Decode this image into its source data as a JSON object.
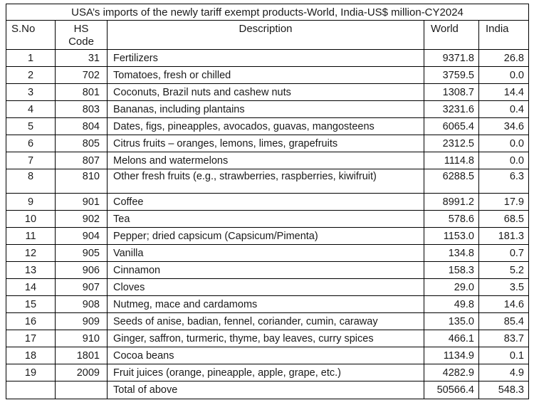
{
  "title": "USA’s imports of the newly tariff exempt products-World, India-US$ million-CY2024",
  "columns": {
    "sno": "S.No",
    "hs_line1": "HS",
    "hs_line2": "Code",
    "description": "Description",
    "world": "World",
    "india": "India"
  },
  "rows": [
    {
      "sno": "1",
      "hs": "31",
      "hs_bold": false,
      "tall": false,
      "description": "Fertilizers",
      "world": "9371.8",
      "india": "26.8"
    },
    {
      "sno": "2",
      "hs": "702",
      "hs_bold": true,
      "tall": false,
      "description": "Tomatoes, fresh or chilled",
      "world": "3759.5",
      "india": "0.0"
    },
    {
      "sno": "3",
      "hs": "801",
      "hs_bold": true,
      "tall": false,
      "description": "Coconuts, Brazil nuts and cashew nuts",
      "world": "1308.7",
      "india": "14.4"
    },
    {
      "sno": "4",
      "hs": "803",
      "hs_bold": true,
      "tall": false,
      "description": "Bananas, including plantains",
      "world": "3231.6",
      "india": "0.4"
    },
    {
      "sno": "5",
      "hs": "804",
      "hs_bold": true,
      "tall": false,
      "description": "Dates, figs, pineapples, avocados, guavas, mangosteens",
      "world": "6065.4",
      "india": "34.6"
    },
    {
      "sno": "6",
      "hs": "805",
      "hs_bold": true,
      "tall": false,
      "description": "Citrus fruits – oranges, lemons, limes, grapefruits",
      "world": "2312.5",
      "india": "0.0"
    },
    {
      "sno": "7",
      "hs": "807",
      "hs_bold": true,
      "tall": false,
      "description": "Melons and watermelons",
      "world": "1114.8",
      "india": "0.0"
    },
    {
      "sno": "8",
      "hs": "810",
      "hs_bold": true,
      "tall": true,
      "description": "Other fresh fruits (e.g., strawberries, raspberries, kiwifruit)",
      "world": "6288.5",
      "india": "6.3"
    },
    {
      "sno": "9",
      "hs": "901",
      "hs_bold": true,
      "tall": false,
      "description": "Coffee",
      "world": "8991.2",
      "india": "17.9"
    },
    {
      "sno": "10",
      "hs": "902",
      "hs_bold": true,
      "tall": false,
      "description": "Tea",
      "world": "578.6",
      "india": "68.5"
    },
    {
      "sno": "11",
      "hs": "904",
      "hs_bold": true,
      "tall": false,
      "description": "Pepper; dried capsicum (Capsicum/Pimenta)",
      "world": "1153.0",
      "india": "181.3"
    },
    {
      "sno": "12",
      "hs": "905",
      "hs_bold": true,
      "tall": false,
      "description": "Vanilla",
      "world": "134.8",
      "india": "0.7"
    },
    {
      "sno": "13",
      "hs": "906",
      "hs_bold": true,
      "tall": false,
      "description": "Cinnamon",
      "world": "158.3",
      "india": "5.2"
    },
    {
      "sno": "14",
      "hs": "907",
      "hs_bold": true,
      "tall": false,
      "description": "Cloves",
      "world": "29.0",
      "india": "3.5"
    },
    {
      "sno": "15",
      "hs": "908",
      "hs_bold": true,
      "tall": false,
      "description": "Nutmeg, mace and cardamoms",
      "world": "49.8",
      "india": "14.6"
    },
    {
      "sno": "16",
      "hs": "909",
      "hs_bold": true,
      "tall": false,
      "description": "Seeds of anise, badian, fennel, coriander, cumin, caraway",
      "world": "135.0",
      "india": "85.4"
    },
    {
      "sno": "17",
      "hs": "910",
      "hs_bold": true,
      "tall": false,
      "description": "Ginger, saffron, turmeric, thyme, bay leaves, curry spices",
      "world": "466.1",
      "india": "83.7"
    },
    {
      "sno": "18",
      "hs": "1801",
      "hs_bold": true,
      "tall": false,
      "description": "Cocoa beans",
      "world": "1134.9",
      "india": "0.1"
    },
    {
      "sno": "19",
      "hs": "2009",
      "hs_bold": true,
      "tall": false,
      "description": "Fruit juices (orange, pineapple, apple, grape, etc.)",
      "world": "4282.9",
      "india": "4.9"
    }
  ],
  "total_row": {
    "label": "Total of above",
    "world": "50566.4",
    "india": "548.3"
  },
  "colors": {
    "border": "#000000",
    "text": "#1a1a1a",
    "background": "#ffffff"
  }
}
